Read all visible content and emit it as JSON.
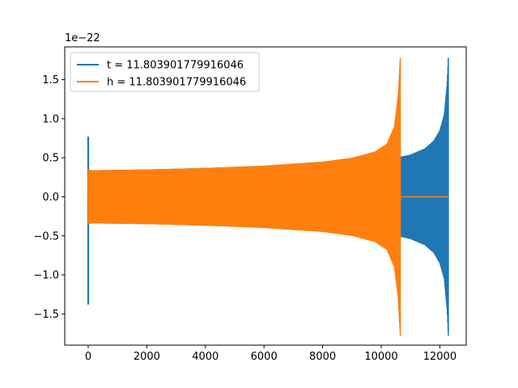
{
  "chart_data": {
    "type": "line",
    "title": "",
    "xlabel": "",
    "ylabel": "",
    "y_offset_text": "1e−22",
    "xlim": [
      -800,
      12900
    ],
    "ylim": [
      -1.9,
      1.92
    ],
    "x_ticks": [
      0,
      2000,
      4000,
      6000,
      8000,
      10000,
      12000
    ],
    "x_tick_labels": [
      "0",
      "2000",
      "4000",
      "6000",
      "8000",
      "10000",
      "12000"
    ],
    "y_ticks": [
      -1.5,
      -1.0,
      -0.5,
      0.0,
      0.5,
      1.0,
      1.5
    ],
    "y_tick_labels": [
      "−1.5",
      "−1.0",
      "−0.5",
      "0.0",
      "0.5",
      "1.0",
      "1.5"
    ],
    "grid": false,
    "legend_position": "top-left",
    "series": [
      {
        "name": "t = 11.803901779916046",
        "color": "#1f77b4",
        "x_range": [
          0,
          12290
        ],
        "spike_at_start": {
          "x": 0,
          "max": 0.77,
          "min": -1.38
        },
        "envelope": {
          "x": [
            0,
            100,
            2000,
            4000,
            6000,
            8000,
            9500,
            10500,
            11000,
            11500,
            11800,
            12000,
            12150,
            12250,
            12290
          ],
          "amp": [
            0.35,
            0.34,
            0.35,
            0.37,
            0.39,
            0.42,
            0.45,
            0.5,
            0.54,
            0.62,
            0.72,
            0.85,
            1.05,
            1.45,
            1.78
          ]
        },
        "tail_value": 0.0
      },
      {
        "name": "h = 11.803901779916046",
        "color": "#ff7f0e",
        "x_range": [
          0,
          10650
        ],
        "envelope": {
          "x": [
            0,
            100,
            2000,
            4000,
            6000,
            8000,
            9000,
            9800,
            10200,
            10450,
            10580,
            10650
          ],
          "amp": [
            0.35,
            0.34,
            0.35,
            0.37,
            0.4,
            0.45,
            0.5,
            0.58,
            0.68,
            0.9,
            1.3,
            1.78
          ]
        },
        "tail_value": 0.0,
        "tail_range": [
          10650,
          12290
        ]
      }
    ]
  }
}
